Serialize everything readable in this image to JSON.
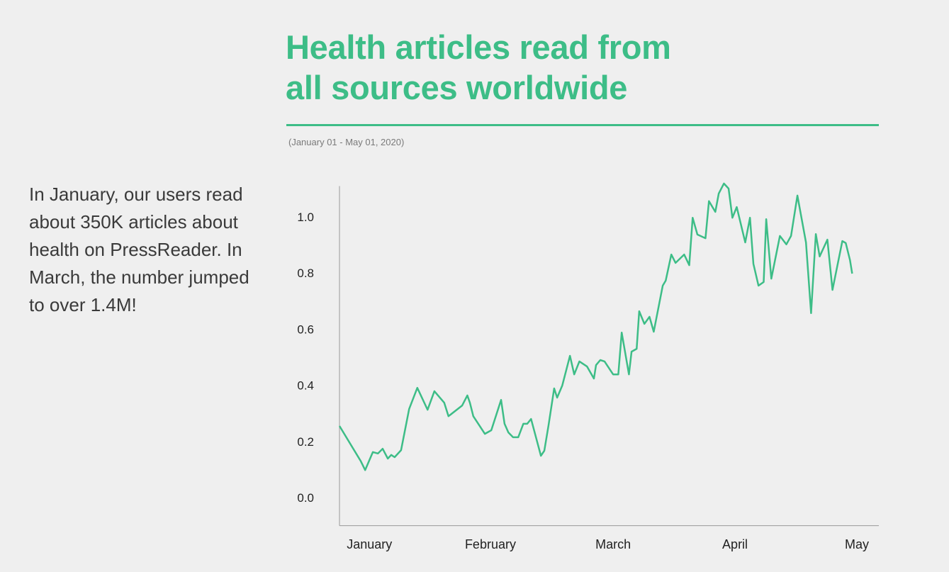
{
  "header": {
    "title_line1": "Health articles read from",
    "title_line2": "all sources worldwide",
    "subtitle": "(January 01 - May 01, 2020)"
  },
  "blurb": "In January, our users read about 350K articles about health on PressReader. In March, the number jumped to over 1.4M!",
  "colors": {
    "accent": "#3dbd87",
    "background": "#efefef",
    "text": "#3a3a3a",
    "axis": "#999999"
  },
  "chart_data": {
    "type": "line",
    "title": "Health articles read from all sources worldwide",
    "xlabel": "",
    "ylabel": "",
    "x_unit": "days since Jan 01, 2020",
    "xlim": [
      0,
      121
    ],
    "ylim": [
      -0.1,
      1.11
    ],
    "yticks": [
      0.0,
      0.2,
      0.4,
      0.6,
      0.8,
      1.0
    ],
    "ytick_labels": [
      "0.0",
      "0.2",
      "0.4",
      "0.6",
      "0.8",
      "1.0"
    ],
    "xticks": [
      7,
      35.3,
      64,
      92.5,
      121
    ],
    "xtick_labels": [
      "January",
      "February",
      "March",
      "April",
      "May"
    ],
    "grid": false,
    "legend": "none",
    "series": [
      {
        "name": "Health articles read",
        "x": [
          0,
          5.0,
          6.0,
          7.8,
          9.0,
          10.1,
          11.3,
          12.1,
          12.9,
          14.4,
          16.3,
          18.2,
          20.6,
          22.2,
          24.5,
          25.5,
          28.7,
          29.9,
          30.5,
          31.3,
          34.0,
          35.5,
          37.8,
          38.6,
          39.5,
          40.6,
          41.8,
          43.0,
          43.9,
          44.8,
          47.1,
          47.9,
          48.9,
          50.2,
          50.9,
          52.1,
          53.9,
          54.9,
          56.1,
          57.9,
          59.5,
          60.0,
          61.0,
          62.0,
          64.0,
          65.2,
          66.0,
          67.7,
          68.3,
          69.5,
          70.1,
          71.3,
          72.5,
          73.5,
          75.6,
          76.3,
          77.6,
          78.6,
          80.6,
          81.8,
          82.6,
          83.7,
          85.6,
          86.4,
          87.9,
          88.7,
          89.9,
          91.0,
          91.9,
          92.9,
          94.9,
          96.0,
          96.8,
          98.0,
          99.2,
          99.8,
          101.0,
          103.0,
          104.5,
          105.6,
          107.1,
          109.1,
          110.3,
          111.4,
          112.3,
          114.1,
          115.3,
          117.6,
          118.4,
          119.4,
          119.9
        ],
        "values": [
          0.255,
          0.129,
          0.098,
          0.162,
          0.157,
          0.174,
          0.139,
          0.152,
          0.144,
          0.169,
          0.316,
          0.391,
          0.313,
          0.379,
          0.338,
          0.29,
          0.328,
          0.364,
          0.338,
          0.29,
          0.227,
          0.24,
          0.348,
          0.263,
          0.232,
          0.215,
          0.215,
          0.263,
          0.263,
          0.28,
          0.149,
          0.167,
          0.258,
          0.389,
          0.356,
          0.399,
          0.505,
          0.439,
          0.485,
          0.467,
          0.424,
          0.472,
          0.49,
          0.485,
          0.439,
          0.439,
          0.588,
          0.439,
          0.52,
          0.53,
          0.664,
          0.619,
          0.644,
          0.591,
          0.755,
          0.773,
          0.866,
          0.836,
          0.866,
          0.828,
          0.997,
          0.937,
          0.924,
          1.056,
          1.018,
          1.083,
          1.119,
          1.101,
          0.997,
          1.035,
          0.909,
          0.997,
          0.833,
          0.755,
          0.768,
          0.992,
          0.78,
          0.932,
          0.902,
          0.932,
          1.076,
          0.909,
          0.657,
          0.939,
          0.859,
          0.919,
          0.74,
          0.914,
          0.907,
          0.846,
          0.798
        ],
        "color": "#3dbd87"
      }
    ]
  }
}
